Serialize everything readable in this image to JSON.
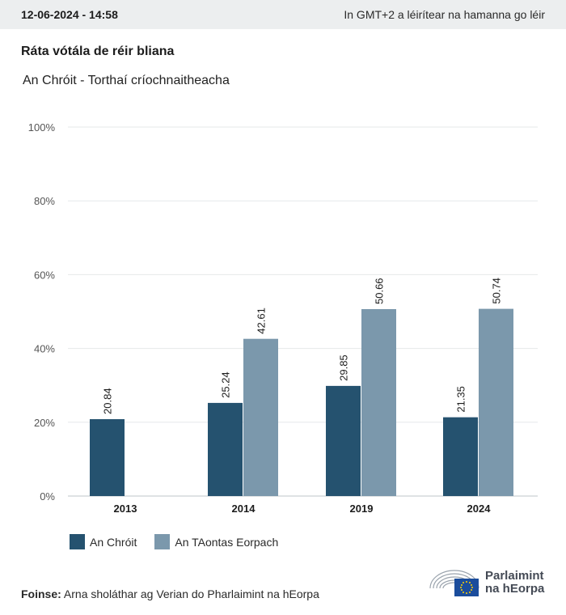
{
  "header": {
    "timestamp": "12-06-2024 - 14:58",
    "timezone_note": "In GMT+2 a léirítear na hamanna go léir"
  },
  "chart_data": {
    "type": "bar",
    "title": "Ráta vótála de réir bliana",
    "subtitle": "An Chróit - Torthaí críochnaitheacha",
    "categories": [
      "2013",
      "2014",
      "2019",
      "2024"
    ],
    "series": [
      {
        "name": "An Chróit",
        "color": "#25526f",
        "values": [
          20.84,
          25.24,
          29.85,
          21.35
        ]
      },
      {
        "name": "An TAontas Eorpach",
        "color": "#7b98ac",
        "values": [
          null,
          42.61,
          50.66,
          50.74
        ]
      }
    ],
    "ylim": [
      0,
      100
    ],
    "yticks": [
      "0%",
      "20%",
      "40%",
      "60%",
      "80%",
      "100%"
    ],
    "grid": true,
    "legend_position": "bottom-left"
  },
  "footer": {
    "source_label": "Foinse:",
    "source_text": "Arna sholáthar ag Verian do Pharlaimint na hEorpa",
    "logo_line1": "Parlaimint",
    "logo_line2": "na hEorpa"
  }
}
